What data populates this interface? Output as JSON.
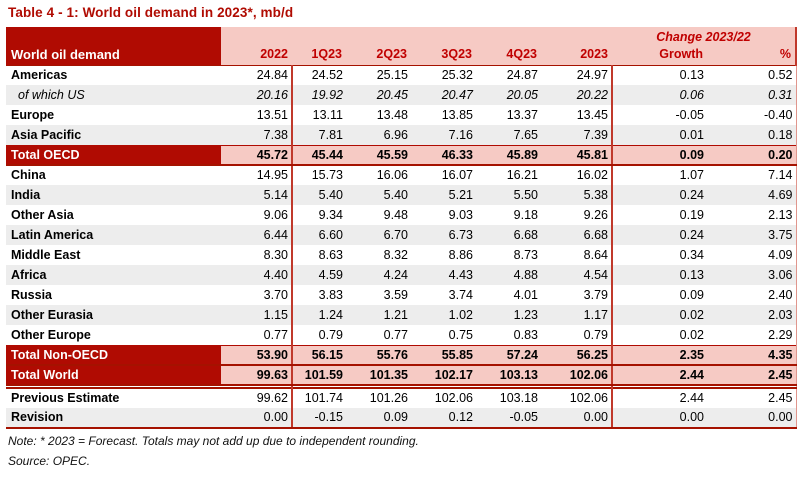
{
  "title": "Table 4 - 1: World oil demand in 2023*, mb/d",
  "colors": {
    "dark_red": "#b00b02",
    "pink": "#f6cac4",
    "red_text": "#c00000",
    "stripe_gray": "#ededed",
    "border_red": "#a51200"
  },
  "table": {
    "corner_label": "World oil demand",
    "change_label": "Change 2023/22",
    "columns": [
      "2022",
      "1Q23",
      "2Q23",
      "3Q23",
      "4Q23",
      "2023",
      "Growth",
      "%"
    ],
    "rows": [
      {
        "label": "Americas",
        "type": "normal",
        "values": [
          "24.84",
          "24.52",
          "25.15",
          "25.32",
          "24.87",
          "24.97",
          "0.13",
          "0.52"
        ]
      },
      {
        "label": "of which US",
        "type": "sub",
        "values": [
          "20.16",
          "19.92",
          "20.45",
          "20.47",
          "20.05",
          "20.22",
          "0.06",
          "0.31"
        ]
      },
      {
        "label": "Europe",
        "type": "normal",
        "values": [
          "13.51",
          "13.11",
          "13.48",
          "13.85",
          "13.37",
          "13.45",
          "-0.05",
          "-0.40"
        ]
      },
      {
        "label": "Asia Pacific",
        "type": "normal",
        "values": [
          "7.38",
          "7.81",
          "6.96",
          "7.16",
          "7.65",
          "7.39",
          "0.01",
          "0.18"
        ]
      },
      {
        "label": "Total OECD",
        "type": "total",
        "values": [
          "45.72",
          "45.44",
          "45.59",
          "46.33",
          "45.89",
          "45.81",
          "0.09",
          "0.20"
        ]
      },
      {
        "label": "China",
        "type": "normal",
        "values": [
          "14.95",
          "15.73",
          "16.06",
          "16.07",
          "16.21",
          "16.02",
          "1.07",
          "7.14"
        ]
      },
      {
        "label": "India",
        "type": "normal",
        "values": [
          "5.14",
          "5.40",
          "5.40",
          "5.21",
          "5.50",
          "5.38",
          "0.24",
          "4.69"
        ]
      },
      {
        "label": "Other Asia",
        "type": "normal",
        "values": [
          "9.06",
          "9.34",
          "9.48",
          "9.03",
          "9.18",
          "9.26",
          "0.19",
          "2.13"
        ]
      },
      {
        "label": "Latin America",
        "type": "normal",
        "values": [
          "6.44",
          "6.60",
          "6.70",
          "6.73",
          "6.68",
          "6.68",
          "0.24",
          "3.75"
        ]
      },
      {
        "label": "Middle East",
        "type": "normal",
        "values": [
          "8.30",
          "8.63",
          "8.32",
          "8.86",
          "8.73",
          "8.64",
          "0.34",
          "4.09"
        ]
      },
      {
        "label": "Africa",
        "type": "normal",
        "values": [
          "4.40",
          "4.59",
          "4.24",
          "4.43",
          "4.88",
          "4.54",
          "0.13",
          "3.06"
        ]
      },
      {
        "label": "Russia",
        "type": "normal",
        "values": [
          "3.70",
          "3.83",
          "3.59",
          "3.74",
          "4.01",
          "3.79",
          "0.09",
          "2.40"
        ]
      },
      {
        "label": "Other Eurasia",
        "type": "normal",
        "values": [
          "1.15",
          "1.24",
          "1.21",
          "1.02",
          "1.23",
          "1.17",
          "0.02",
          "2.03"
        ]
      },
      {
        "label": "Other Europe",
        "type": "normal",
        "values": [
          "0.77",
          "0.79",
          "0.77",
          "0.75",
          "0.83",
          "0.79",
          "0.02",
          "2.29"
        ]
      },
      {
        "label": "Total Non-OECD",
        "type": "total",
        "values": [
          "53.90",
          "56.15",
          "55.76",
          "55.85",
          "57.24",
          "56.25",
          "2.35",
          "4.35"
        ]
      },
      {
        "label": "Total World",
        "type": "total_world",
        "values": [
          "99.63",
          "101.59",
          "101.35",
          "102.17",
          "103.13",
          "102.06",
          "2.44",
          "2.45"
        ]
      },
      {
        "label": "Previous Estimate",
        "type": "estimate",
        "values": [
          "99.62",
          "101.74",
          "101.26",
          "102.06",
          "103.18",
          "102.06",
          "2.44",
          "2.45"
        ]
      },
      {
        "label": "Revision",
        "type": "estimate_last",
        "values": [
          "0.00",
          "-0.15",
          "0.09",
          "0.12",
          "-0.05",
          "0.00",
          "0.00",
          "0.00"
        ]
      }
    ]
  },
  "note": "Note: * 2023 = Forecast. Totals may not add up due to independent rounding.",
  "source": "Source: OPEC."
}
